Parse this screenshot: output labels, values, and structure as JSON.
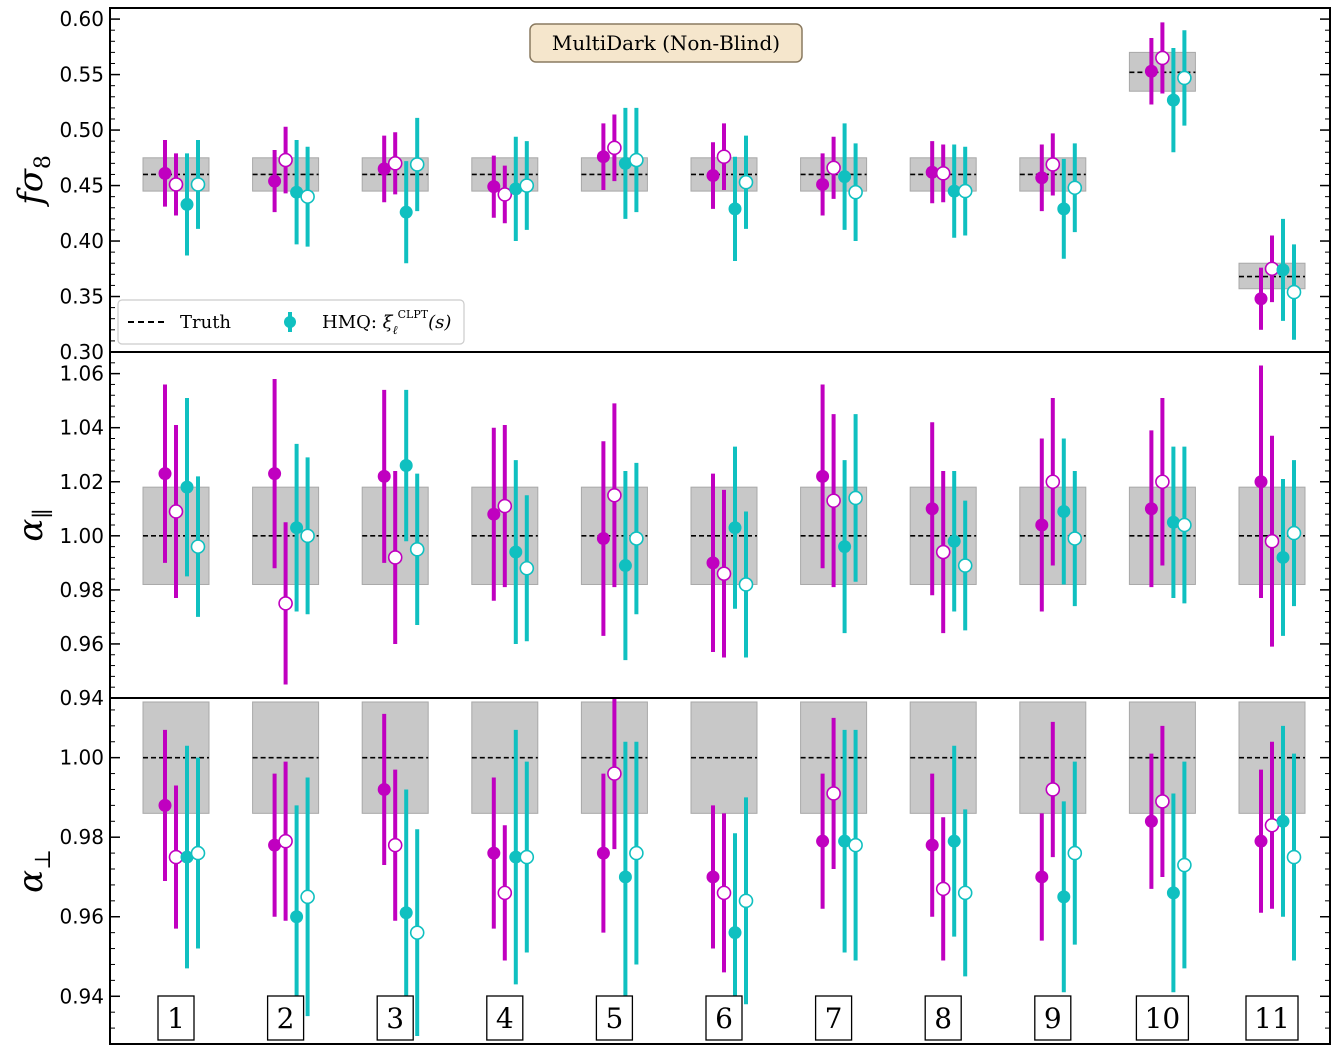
{
  "chart_data": {
    "type": "scatter",
    "title": "MultiDark (Non-Blind)",
    "legend": {
      "placement": "lower-left",
      "entries": [
        {
          "label": "Truth",
          "style": "dashed-line"
        },
        {
          "label": "HMQ: ξℓCLPT(s)",
          "label_main": "HMQ: ",
          "label_xi": "ξ",
          "label_sub": "ℓ",
          "label_sup": "CLPT",
          "label_arg": "(s)",
          "style": "errorbar-marker"
        }
      ]
    },
    "x": [
      "1",
      "2",
      "3",
      "4",
      "5",
      "6",
      "7",
      "8",
      "9",
      "10",
      "11"
    ],
    "colors": {
      "magenta": "#c000c0",
      "cyan": "#10c0c0",
      "band": "#c8c8c8"
    },
    "panels": [
      {
        "name": "f-sigma8",
        "ylabel": "fσ",
        "ylabel_main": "fσ",
        "ylabel_sub": "8",
        "ylim": [
          0.3,
          0.61
        ],
        "yticks": [
          "0.30",
          "0.35",
          "0.40",
          "0.45",
          "0.50",
          "0.55",
          "0.60"
        ],
        "truth": [
          0.46,
          0.46,
          0.46,
          0.46,
          0.46,
          0.46,
          0.46,
          0.46,
          0.46,
          0.552,
          0.368
        ],
        "band": [
          [
            0.445,
            0.475
          ],
          [
            0.445,
            0.475
          ],
          [
            0.445,
            0.475
          ],
          [
            0.445,
            0.475
          ],
          [
            0.445,
            0.475
          ],
          [
            0.445,
            0.475
          ],
          [
            0.445,
            0.475
          ],
          [
            0.445,
            0.475
          ],
          [
            0.445,
            0.475
          ],
          [
            0.535,
            0.57
          ],
          [
            0.357,
            0.38
          ]
        ],
        "series": [
          {
            "color": "magenta",
            "filled": true,
            "values": [
              0.461,
              0.454,
              0.465,
              0.449,
              0.476,
              0.459,
              0.451,
              0.462,
              0.457,
              0.553,
              0.348
            ],
            "err": [
              0.03,
              0.028,
              0.03,
              0.028,
              0.03,
              0.03,
              0.028,
              0.028,
              0.03,
              0.03,
              0.028
            ]
          },
          {
            "color": "magenta",
            "filled": false,
            "values": [
              0.451,
              0.473,
              0.47,
              0.442,
              0.484,
              0.476,
              0.466,
              0.461,
              0.469,
              0.565,
              0.375
            ],
            "err": [
              0.028,
              0.03,
              0.028,
              0.026,
              0.03,
              0.03,
              0.028,
              0.026,
              0.028,
              0.032,
              0.03
            ]
          },
          {
            "color": "cyan",
            "filled": true,
            "values": [
              0.433,
              0.444,
              0.426,
              0.447,
              0.47,
              0.429,
              0.458,
              0.445,
              0.429,
              0.527,
              0.374
            ],
            "err": [
              0.046,
              0.047,
              0.046,
              0.047,
              0.05,
              0.047,
              0.048,
              0.042,
              0.045,
              0.047,
              0.046
            ]
          },
          {
            "color": "cyan",
            "filled": false,
            "values": [
              0.451,
              0.44,
              0.469,
              0.45,
              0.473,
              0.453,
              0.444,
              0.445,
              0.448,
              0.547,
              0.354
            ],
            "err": [
              0.04,
              0.045,
              0.042,
              0.04,
              0.047,
              0.042,
              0.044,
              0.04,
              0.04,
              0.043,
              0.043
            ]
          }
        ]
      },
      {
        "name": "alpha-parallel",
        "ylabel": "α∥",
        "ylabel_main": "α",
        "ylabel_sub": "∥",
        "ylim": [
          0.94,
          1.068
        ],
        "yticks": [
          "0.94",
          "0.96",
          "0.98",
          "1.00",
          "1.02",
          "1.04",
          "1.06"
        ],
        "truth": [
          1.0,
          1.0,
          1.0,
          1.0,
          1.0,
          1.0,
          1.0,
          1.0,
          1.0,
          1.0,
          1.0
        ],
        "band": [
          [
            0.982,
            1.018
          ],
          [
            0.982,
            1.018
          ],
          [
            0.982,
            1.018
          ],
          [
            0.982,
            1.018
          ],
          [
            0.982,
            1.018
          ],
          [
            0.982,
            1.018
          ],
          [
            0.982,
            1.018
          ],
          [
            0.982,
            1.018
          ],
          [
            0.982,
            1.018
          ],
          [
            0.982,
            1.018
          ],
          [
            0.982,
            1.018
          ]
        ],
        "series": [
          {
            "color": "magenta",
            "filled": true,
            "values": [
              1.023,
              1.023,
              1.022,
              1.008,
              0.999,
              0.99,
              1.022,
              1.01,
              1.004,
              1.01,
              1.02
            ],
            "err": [
              0.033,
              0.035,
              0.032,
              0.032,
              0.036,
              0.033,
              0.034,
              0.032,
              0.032,
              0.029,
              0.043
            ]
          },
          {
            "color": "magenta",
            "filled": false,
            "values": [
              1.009,
              0.975,
              0.992,
              1.011,
              1.015,
              0.986,
              1.013,
              0.994,
              1.02,
              1.02,
              0.998
            ],
            "err": [
              0.032,
              0.03,
              0.032,
              0.03,
              0.034,
              0.031,
              0.032,
              0.03,
              0.031,
              0.031,
              0.039
            ]
          },
          {
            "color": "cyan",
            "filled": true,
            "values": [
              1.018,
              1.003,
              1.026,
              0.994,
              0.989,
              1.003,
              0.996,
              0.998,
              1.009,
              1.005,
              0.992
            ],
            "err": [
              0.033,
              0.031,
              0.028,
              0.034,
              0.035,
              0.03,
              0.032,
              0.026,
              0.027,
              0.028,
              0.029
            ]
          },
          {
            "color": "cyan",
            "filled": false,
            "values": [
              0.996,
              1.0,
              0.995,
              0.988,
              0.999,
              0.982,
              1.014,
              0.989,
              0.999,
              1.004,
              1.001
            ],
            "err": [
              0.026,
              0.029,
              0.028,
              0.027,
              0.028,
              0.027,
              0.031,
              0.024,
              0.025,
              0.029,
              0.027
            ]
          }
        ]
      },
      {
        "name": "alpha-perp",
        "ylabel": "α⊥",
        "ylabel_main": "α",
        "ylabel_sub": "⊥",
        "ylim": [
          0.928,
          1.015
        ],
        "yticks": [
          "0.94",
          "0.96",
          "0.98",
          "1.00"
        ],
        "truth": [
          1.0,
          1.0,
          1.0,
          1.0,
          1.0,
          1.0,
          1.0,
          1.0,
          1.0,
          1.0,
          1.0
        ],
        "band": [
          [
            0.986,
            1.014
          ],
          [
            0.986,
            1.014
          ],
          [
            0.986,
            1.014
          ],
          [
            0.986,
            1.014
          ],
          [
            0.986,
            1.014
          ],
          [
            0.986,
            1.014
          ],
          [
            0.986,
            1.014
          ],
          [
            0.986,
            1.014
          ],
          [
            0.986,
            1.014
          ],
          [
            0.986,
            1.014
          ],
          [
            0.986,
            1.014
          ]
        ],
        "series": [
          {
            "color": "magenta",
            "filled": true,
            "values": [
              0.988,
              0.978,
              0.992,
              0.976,
              0.976,
              0.97,
              0.979,
              0.978,
              0.97,
              0.984,
              0.979
            ],
            "err": [
              0.019,
              0.018,
              0.019,
              0.019,
              0.02,
              0.018,
              0.017,
              0.018,
              0.016,
              0.017,
              0.018
            ]
          },
          {
            "color": "magenta",
            "filled": false,
            "values": [
              0.975,
              0.979,
              0.978,
              0.966,
              0.996,
              0.966,
              0.991,
              0.967,
              0.992,
              0.989,
              0.983
            ],
            "err": [
              0.018,
              0.02,
              0.019,
              0.017,
              0.019,
              0.02,
              0.019,
              0.018,
              0.017,
              0.019,
              0.021
            ]
          },
          {
            "color": "cyan",
            "filled": true,
            "values": [
              0.975,
              0.96,
              0.961,
              0.975,
              0.97,
              0.956,
              0.979,
              0.979,
              0.965,
              0.966,
              0.984
            ],
            "err": [
              0.028,
              0.028,
              0.031,
              0.032,
              0.034,
              0.025,
              0.028,
              0.024,
              0.024,
              0.025,
              0.024
            ]
          },
          {
            "color": "cyan",
            "filled": false,
            "values": [
              0.976,
              0.965,
              0.956,
              0.975,
              0.976,
              0.964,
              0.978,
              0.966,
              0.976,
              0.973,
              0.975
            ],
            "err": [
              0.024,
              0.03,
              0.026,
              0.024,
              0.028,
              0.026,
              0.029,
              0.021,
              0.023,
              0.026,
              0.026
            ]
          }
        ]
      }
    ]
  }
}
